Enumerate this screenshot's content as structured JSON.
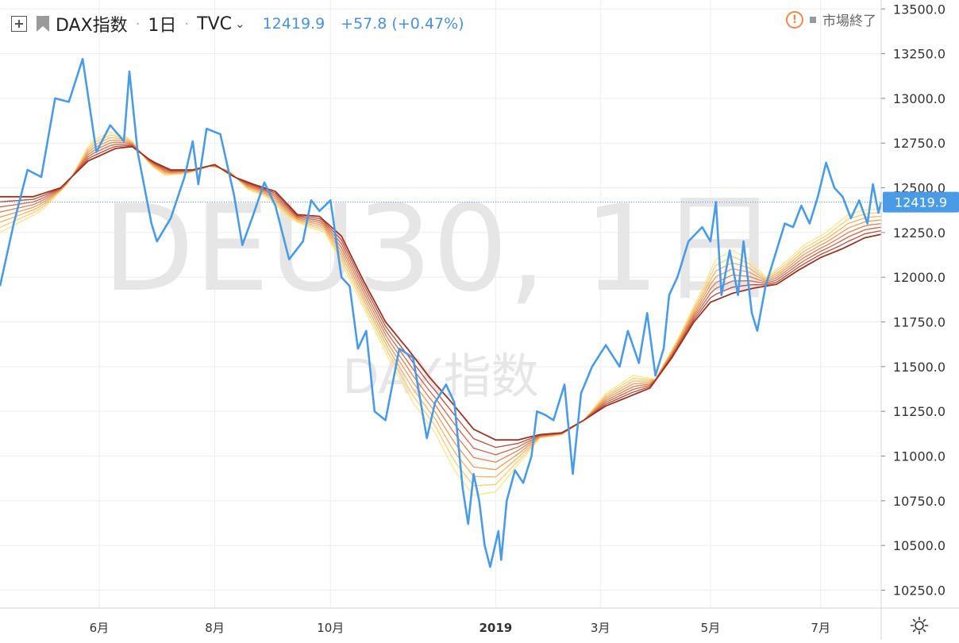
{
  "header": {
    "symbol": "DAX指数",
    "interval": "1日",
    "source": "TVC",
    "price": "12419.9",
    "change": "+57.8 (+0.47%)"
  },
  "status": {
    "text": "市場終了",
    "warn_symbol": "!"
  },
  "watermark": {
    "main": "DEU30, 1日",
    "sub": "DAX指数"
  },
  "colors": {
    "price_line": "#4a9be6",
    "last_price_badge": "#4a9be6",
    "grid": "#e8edf2",
    "ribbon": [
      "#fbe58a",
      "#f8cf74",
      "#f3b365",
      "#ec9a5a",
      "#e07f50",
      "#cf6647",
      "#b84c3c",
      "#9a3322"
    ]
  },
  "chart_data": {
    "type": "line",
    "title": "",
    "xlabel": "",
    "ylabel": "",
    "ylim": [
      10150,
      13550
    ],
    "y_ticks": [
      "10250.0",
      "10500.0",
      "10750.0",
      "11000.0",
      "11250.0",
      "11500.0",
      "11750.0",
      "12000.0",
      "12250.0",
      "12500.0",
      "12750.0",
      "13000.0",
      "13250.0",
      "13500.0"
    ],
    "y_tick_values": [
      10250,
      10500,
      10750,
      11000,
      11250,
      11500,
      11750,
      12000,
      12250,
      12500,
      12750,
      13000,
      13250,
      13500
    ],
    "x_ticks": [
      "6月",
      "8月",
      "10月",
      "2019",
      "3月",
      "5月",
      "7月"
    ],
    "x_tick_positions": [
      36,
      78,
      120,
      180,
      218,
      258,
      298
    ],
    "x_range": [
      0,
      320
    ],
    "last_price": 12419.9,
    "last_price_label": "12419.9",
    "series": [
      {
        "role": "price",
        "points": [
          [
            0,
            11950
          ],
          [
            5,
            12300
          ],
          [
            10,
            12600
          ],
          [
            15,
            12560
          ],
          [
            20,
            13000
          ],
          [
            25,
            12980
          ],
          [
            30,
            13220
          ],
          [
            35,
            12700
          ],
          [
            40,
            12850
          ],
          [
            45,
            12760
          ],
          [
            47,
            13150
          ],
          [
            50,
            12700
          ],
          [
            55,
            12300
          ],
          [
            57,
            12200
          ],
          [
            62,
            12330
          ],
          [
            67,
            12560
          ],
          [
            70,
            12760
          ],
          [
            72,
            12520
          ],
          [
            75,
            12830
          ],
          [
            80,
            12800
          ],
          [
            85,
            12460
          ],
          [
            88,
            12180
          ],
          [
            92,
            12350
          ],
          [
            96,
            12530
          ],
          [
            100,
            12400
          ],
          [
            105,
            12100
          ],
          [
            110,
            12200
          ],
          [
            113,
            12430
          ],
          [
            116,
            12370
          ],
          [
            120,
            12430
          ],
          [
            124,
            12000
          ],
          [
            127,
            11950
          ],
          [
            130,
            11600
          ],
          [
            133,
            11700
          ],
          [
            136,
            11250
          ],
          [
            140,
            11200
          ],
          [
            145,
            11600
          ],
          [
            150,
            11550
          ],
          [
            155,
            11100
          ],
          [
            158,
            11300
          ],
          [
            162,
            11400
          ],
          [
            165,
            11300
          ],
          [
            168,
            10820
          ],
          [
            170,
            10620
          ],
          [
            172,
            10900
          ],
          [
            174,
            10750
          ],
          [
            176,
            10500
          ],
          [
            178,
            10380
          ],
          [
            181,
            10580
          ],
          [
            182,
            10420
          ],
          [
            184,
            10750
          ],
          [
            187,
            10920
          ],
          [
            190,
            10850
          ],
          [
            193,
            11000
          ],
          [
            195,
            11250
          ],
          [
            198,
            11230
          ],
          [
            201,
            11200
          ],
          [
            205,
            11400
          ],
          [
            208,
            10900
          ],
          [
            211,
            11350
          ],
          [
            215,
            11500
          ],
          [
            220,
            11620
          ],
          [
            225,
            11500
          ],
          [
            228,
            11700
          ],
          [
            232,
            11520
          ],
          [
            235,
            11800
          ],
          [
            238,
            11450
          ],
          [
            241,
            11600
          ],
          [
            243,
            11900
          ],
          [
            246,
            12000
          ],
          [
            250,
            12200
          ],
          [
            255,
            12280
          ],
          [
            258,
            12200
          ],
          [
            260,
            12420
          ],
          [
            262,
            11900
          ],
          [
            265,
            12150
          ],
          [
            268,
            11900
          ],
          [
            270,
            12200
          ],
          [
            273,
            11800
          ],
          [
            275,
            11700
          ],
          [
            278,
            11950
          ],
          [
            282,
            12150
          ],
          [
            285,
            12300
          ],
          [
            288,
            12280
          ],
          [
            291,
            12400
          ],
          [
            294,
            12300
          ],
          [
            297,
            12450
          ],
          [
            300,
            12640
          ],
          [
            303,
            12500
          ],
          [
            306,
            12450
          ],
          [
            309,
            12330
          ],
          [
            312,
            12430
          ],
          [
            315,
            12300
          ],
          [
            317,
            12520
          ],
          [
            319,
            12360
          ],
          [
            320,
            12420
          ]
        ]
      },
      {
        "role": "ribbon",
        "note": "8 moving averages, fast to slow",
        "points": [
          [
            0,
            12250
          ],
          [
            15,
            12370
          ],
          [
            25,
            12530
          ],
          [
            33,
            12760
          ],
          [
            40,
            12810
          ],
          [
            47,
            12780
          ],
          [
            55,
            12620
          ],
          [
            60,
            12570
          ],
          [
            68,
            12580
          ],
          [
            76,
            12620
          ],
          [
            83,
            12600
          ],
          [
            90,
            12490
          ],
          [
            97,
            12450
          ],
          [
            105,
            12330
          ],
          [
            112,
            12280
          ],
          [
            118,
            12250
          ],
          [
            125,
            12050
          ],
          [
            133,
            11800
          ],
          [
            142,
            11520
          ],
          [
            150,
            11300
          ],
          [
            158,
            11130
          ],
          [
            165,
            10920
          ],
          [
            172,
            10780
          ],
          [
            180,
            10800
          ],
          [
            188,
            10950
          ],
          [
            196,
            11100
          ],
          [
            204,
            11120
          ],
          [
            212,
            11200
          ],
          [
            220,
            11350
          ],
          [
            230,
            11450
          ],
          [
            238,
            11430
          ],
          [
            246,
            11650
          ],
          [
            254,
            11900
          ],
          [
            260,
            12100
          ],
          [
            266,
            12150
          ],
          [
            272,
            12100
          ],
          [
            278,
            12000
          ],
          [
            285,
            12080
          ],
          [
            292,
            12180
          ],
          [
            300,
            12250
          ],
          [
            308,
            12350
          ],
          [
            315,
            12380
          ],
          [
            320,
            12380
          ]
        ],
        "slow_points": [
          [
            0,
            12450
          ],
          [
            12,
            12450
          ],
          [
            22,
            12500
          ],
          [
            32,
            12650
          ],
          [
            42,
            12720
          ],
          [
            48,
            12730
          ],
          [
            55,
            12650
          ],
          [
            62,
            12600
          ],
          [
            70,
            12600
          ],
          [
            78,
            12630
          ],
          [
            85,
            12560
          ],
          [
            92,
            12520
          ],
          [
            100,
            12480
          ],
          [
            108,
            12350
          ],
          [
            116,
            12340
          ],
          [
            124,
            12230
          ],
          [
            132,
            11980
          ],
          [
            140,
            11750
          ],
          [
            148,
            11600
          ],
          [
            156,
            11440
          ],
          [
            164,
            11300
          ],
          [
            172,
            11150
          ],
          [
            180,
            11090
          ],
          [
            188,
            11090
          ],
          [
            196,
            11120
          ],
          [
            204,
            11130
          ],
          [
            212,
            11200
          ],
          [
            220,
            11280
          ],
          [
            228,
            11330
          ],
          [
            236,
            11380
          ],
          [
            244,
            11550
          ],
          [
            252,
            11750
          ],
          [
            258,
            11860
          ],
          [
            266,
            11910
          ],
          [
            274,
            11940
          ],
          [
            282,
            11960
          ],
          [
            290,
            12040
          ],
          [
            298,
            12110
          ],
          [
            306,
            12160
          ],
          [
            314,
            12220
          ],
          [
            320,
            12240
          ]
        ]
      }
    ]
  }
}
